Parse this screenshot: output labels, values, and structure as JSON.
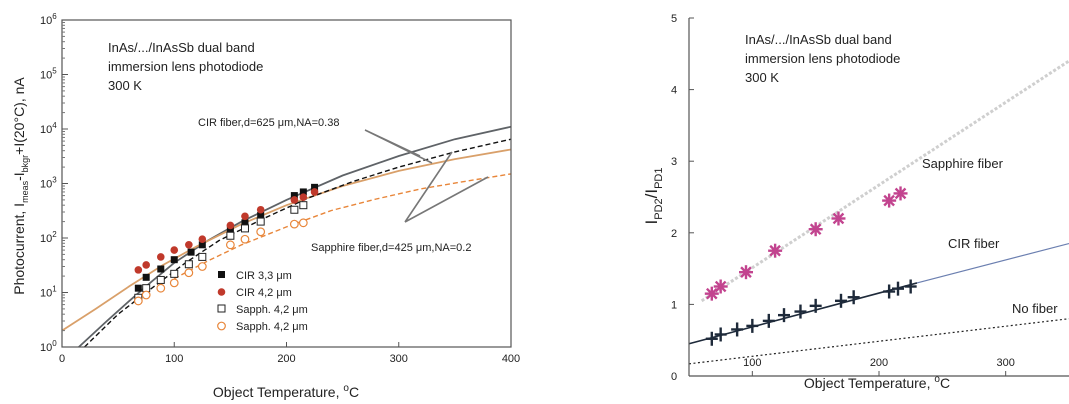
{
  "chart_data": [
    {
      "type": "scatter",
      "y_scale": "log",
      "xlim": [
        0,
        400
      ],
      "ylim": [
        1,
        1000000
      ],
      "xlabel_main": "Object Temperature, ",
      "xlabel_sup": "o",
      "xlabel_tail": "C",
      "ylabel": "Photocurrent, I",
      "ylabel_sub1": "meas",
      "ylabel_mid": "-I",
      "ylabel_sub2": "bkgr",
      "ylabel_end": "+I(20°C), nA",
      "x_ticks": [
        0,
        100,
        200,
        300,
        400
      ],
      "y_ticks": [
        {
          "value": 1,
          "base": "10",
          "exp": "0"
        },
        {
          "value": 10,
          "base": "10",
          "exp": "1"
        },
        {
          "value": 100,
          "base": "10",
          "exp": "2"
        },
        {
          "value": 1000,
          "base": "10",
          "exp": "3"
        },
        {
          "value": 10000,
          "base": "10",
          "exp": "4"
        },
        {
          "value": 100000,
          "base": "10",
          "exp": "5"
        },
        {
          "value": 1000000,
          "base": "10",
          "exp": "6"
        }
      ],
      "annotation_lines": [
        "InAs/.../InAsSb dual band",
        "immersion lens photodiode",
        "300 K"
      ],
      "callout_cir": "CIR fiber,d=625 μm,NA=0.38",
      "callout_sapph": "Sapphire fiber,d=425 μm,NA=0.2",
      "series": [
        {
          "name": "CIR 3,3 μm",
          "marker": "filled-square",
          "color": "#111111",
          "x": [
            68,
            75,
            88,
            100,
            115,
            125,
            150,
            163,
            177,
            207,
            215,
            225
          ],
          "y": [
            12,
            19,
            27,
            40,
            55,
            75,
            140,
            190,
            260,
            600,
            700,
            850
          ]
        },
        {
          "name": "CIR 4,2 μm",
          "marker": "filled-circle",
          "color": "#c0392b",
          "x": [
            68,
            75,
            88,
            100,
            113,
            125,
            150,
            163,
            177,
            207,
            215,
            225
          ],
          "y": [
            26,
            32,
            45,
            60,
            75,
            95,
            170,
            250,
            330,
            500,
            560,
            700
          ]
        },
        {
          "name": "Sapph. 4,2 μm",
          "marker": "open-square",
          "color": "#222222",
          "x": [
            68,
            75,
            88,
            100,
            113,
            125,
            150,
            163,
            177,
            207,
            215
          ],
          "y": [
            8,
            12,
            17,
            22,
            33,
            45,
            110,
            150,
            200,
            330,
            400
          ]
        },
        {
          "name": "Sapph. 4,2 μm",
          "marker": "open-circle",
          "color": "#e8863a",
          "x": [
            68,
            75,
            88,
            100,
            113,
            125,
            150,
            163,
            177,
            207,
            215
          ],
          "y": [
            7,
            9,
            12,
            15,
            23,
            30,
            75,
            95,
            130,
            180,
            190
          ]
        }
      ],
      "fit_curves": [
        {
          "color": "#5f6367",
          "style": "solid",
          "x": [
            15,
            40,
            60,
            80,
            100,
            130,
            160,
            200,
            250,
            300,
            350,
            400
          ],
          "y": [
            1,
            3,
            7,
            16,
            35,
            90,
            200,
            500,
            1400,
            3200,
            6500,
            11000
          ]
        },
        {
          "color": "#d9a06a",
          "style": "solid",
          "x": [
            0,
            30,
            60,
            90,
            120,
            160,
            200,
            250,
            300,
            350,
            400
          ],
          "y": [
            2,
            5,
            13,
            32,
            70,
            180,
            400,
            900,
            1700,
            2800,
            4200
          ]
        },
        {
          "color": "#111111",
          "style": "dashed",
          "x": [
            20,
            50,
            80,
            110,
            140,
            180,
            220,
            260,
            300,
            350,
            400
          ],
          "y": [
            1,
            4,
            12,
            35,
            90,
            230,
            550,
            1100,
            2000,
            3800,
            6500
          ]
        },
        {
          "color": "#e8863a",
          "style": "dashed",
          "x": [
            100,
            130,
            160,
            200,
            240,
            280,
            320,
            360,
            400
          ],
          "y": [
            18,
            38,
            75,
            160,
            320,
            520,
            800,
            1100,
            1500
          ]
        }
      ]
    },
    {
      "type": "scatter",
      "xlim": [
        50,
        350
      ],
      "ylim": [
        0,
        5
      ],
      "xlabel_main": "Object Temperature, ",
      "xlabel_sup": "o",
      "xlabel_tail": "C",
      "ylabel_pre": "I",
      "ylabel_sub1": "PD2",
      "ylabel_mid": "/I",
      "ylabel_sub2": "PD1",
      "x_ticks": [
        100,
        200,
        300
      ],
      "y_ticks": [
        0,
        1,
        2,
        3,
        4,
        5
      ],
      "annotation_lines": [
        "InAs/.../InAsSb dual band",
        "immersion lens photodiode",
        "300 K"
      ],
      "series": [
        {
          "name": "Sapphire fiber",
          "marker": "asterisk",
          "color": "#c2448f",
          "x": [
            68,
            75,
            95,
            118,
            150,
            168,
            208,
            217
          ],
          "y": [
            1.15,
            1.25,
            1.45,
            1.75,
            2.05,
            2.2,
            2.45,
            2.55
          ],
          "fit": {
            "x": [
              60,
              350
            ],
            "y": [
              1.05,
              4.4
            ],
            "color": "#cfcfcf",
            "style": "dotted"
          }
        },
        {
          "name": "CIR fiber",
          "marker": "plus",
          "color": "#1e2a3a",
          "x": [
            68,
            75,
            88,
            100,
            113,
            125,
            138,
            150,
            170,
            180,
            208,
            215,
            225
          ],
          "y": [
            0.52,
            0.58,
            0.65,
            0.7,
            0.77,
            0.85,
            0.9,
            0.98,
            1.05,
            1.1,
            1.18,
            1.22,
            1.25
          ],
          "fit": {
            "x": [
              50,
              230
            ],
            "y": [
              0.45,
              1.3
            ],
            "color": "#1e2a3a",
            "style": "solid"
          },
          "fit_ext": {
            "x": [
              230,
              350
            ],
            "y": [
              1.3,
              1.85
            ],
            "color": "#6b7fb0",
            "style": "solid"
          }
        },
        {
          "name": "No fiber",
          "marker": "none",
          "color": "#222222",
          "x": [],
          "y": [],
          "fit": {
            "x": [
              50,
              350
            ],
            "y": [
              0.17,
              0.8
            ],
            "color": "#222222",
            "style": "dotted"
          }
        }
      ]
    }
  ]
}
